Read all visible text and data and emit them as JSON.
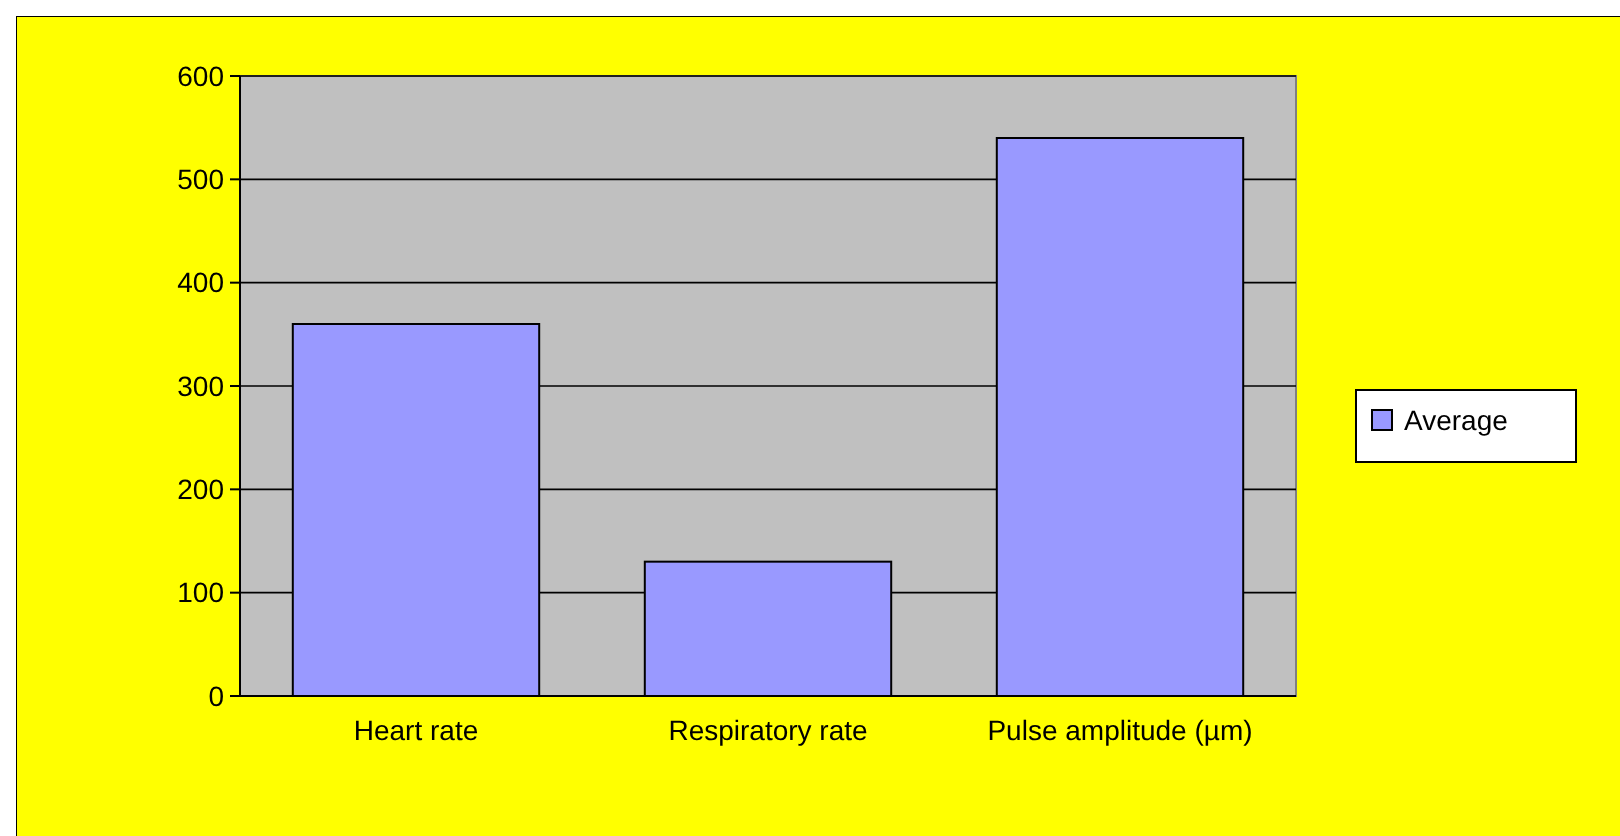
{
  "chart_data": {
    "type": "bar",
    "categories": [
      "Heart rate",
      "Respiratory rate",
      "Pulse amplitude (µm)"
    ],
    "series": [
      {
        "name": "Average",
        "color": "#9999ff",
        "values": [
          360,
          130,
          540
        ]
      }
    ],
    "ylim": [
      0,
      600
    ],
    "yticks": [
      0,
      100,
      200,
      300,
      400,
      500,
      600
    ],
    "grid": "y",
    "legend": "right"
  }
}
